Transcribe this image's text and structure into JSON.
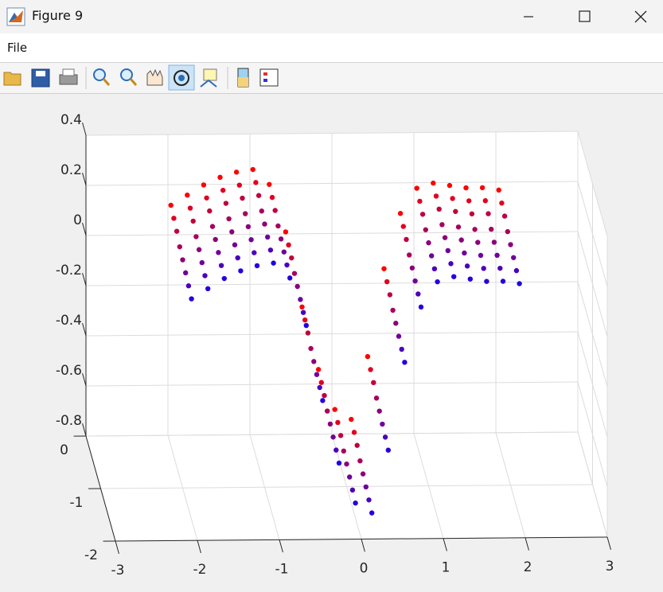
{
  "window": {
    "title": "Figure 9"
  },
  "menu": {
    "items": [
      "File"
    ]
  },
  "chart_data": {
    "type": "scatter3",
    "xlim": [
      -3,
      3
    ],
    "ylim": [
      -2,
      0
    ],
    "zlim": [
      -0.8,
      0.4
    ],
    "xticks": [
      -3,
      -2,
      -1,
      0,
      1,
      2,
      3
    ],
    "yticks": [
      -2,
      -1,
      0
    ],
    "zticks": [
      -0.8,
      -0.6,
      -0.4,
      -0.2,
      0,
      0.2,
      0.4
    ],
    "grid": true,
    "x": [
      -2,
      -1.8,
      -1.6,
      -1.4,
      -1.2,
      -1,
      -0.8,
      -0.6,
      -0.4,
      -0.2,
      0,
      0.2,
      0.4,
      0.6,
      0.8,
      1,
      1.2,
      1.4,
      1.6,
      1.8,
      2
    ],
    "series": [
      {
        "color": "#ff0000",
        "y": -0.2,
        "z": [
          0.16,
          0.2,
          0.24,
          0.27,
          0.29,
          0.3,
          0.24,
          0.05,
          -0.25,
          -0.5,
          -0.66,
          -0.7,
          -0.45,
          -0.1,
          0.12,
          0.22,
          0.24,
          0.23,
          0.22,
          0.22,
          0.21
        ]
      },
      {
        "color": "#e00020",
        "y": -0.4,
        "z": [
          0.15,
          0.19,
          0.23,
          0.26,
          0.28,
          0.29,
          0.23,
          0.04,
          -0.26,
          -0.51,
          -0.67,
          -0.71,
          -0.46,
          -0.11,
          0.11,
          0.21,
          0.23,
          0.22,
          0.21,
          0.21,
          0.2
        ]
      },
      {
        "color": "#c0003c",
        "y": -0.6,
        "z": [
          0.14,
          0.18,
          0.22,
          0.25,
          0.27,
          0.28,
          0.22,
          0.03,
          -0.27,
          -0.52,
          -0.68,
          -0.72,
          -0.47,
          -0.12,
          0.1,
          0.2,
          0.22,
          0.21,
          0.2,
          0.2,
          0.19
        ]
      },
      {
        "color": "#a8005c",
        "y": -0.8,
        "z": [
          0.12,
          0.16,
          0.2,
          0.23,
          0.25,
          0.26,
          0.2,
          0.01,
          -0.29,
          -0.54,
          -0.7,
          -0.74,
          -0.49,
          -0.14,
          0.08,
          0.18,
          0.2,
          0.19,
          0.18,
          0.18,
          0.17
        ]
      },
      {
        "color": "#8c0078",
        "y": -1,
        "z": [
          0.11,
          0.15,
          0.19,
          0.22,
          0.24,
          0.25,
          0.19,
          0,
          -0.3,
          -0.55,
          -0.71,
          -0.75,
          -0.5,
          -0.15,
          0.07,
          0.17,
          0.19,
          0.18,
          0.17,
          0.17,
          0.16
        ]
      },
      {
        "color": "#700098",
        "y": -1.2,
        "z": [
          0.1,
          0.14,
          0.18,
          0.21,
          0.23,
          0.24,
          0.18,
          -0.01,
          -0.31,
          -0.56,
          -0.72,
          -0.76,
          -0.51,
          -0.16,
          0.06,
          0.16,
          0.18,
          0.17,
          0.16,
          0.16,
          0.15
        ]
      },
      {
        "color": "#4c00bc",
        "y": -1.4,
        "z": [
          0.09,
          0.13,
          0.17,
          0.2,
          0.22,
          0.23,
          0.17,
          -0.02,
          -0.32,
          -0.57,
          -0.73,
          -0.77,
          -0.52,
          -0.17,
          0.05,
          0.15,
          0.17,
          0.16,
          0.15,
          0.15,
          0.14
        ]
      },
      {
        "color": "#2400e0",
        "y": -1.6,
        "z": [
          0.08,
          0.12,
          0.16,
          0.19,
          0.21,
          0.22,
          0.16,
          -0.03,
          -0.33,
          -0.58,
          -0.74,
          -0.78,
          -0.53,
          -0.18,
          0.04,
          0.14,
          0.16,
          0.15,
          0.14,
          0.14,
          0.13
        ]
      }
    ]
  }
}
